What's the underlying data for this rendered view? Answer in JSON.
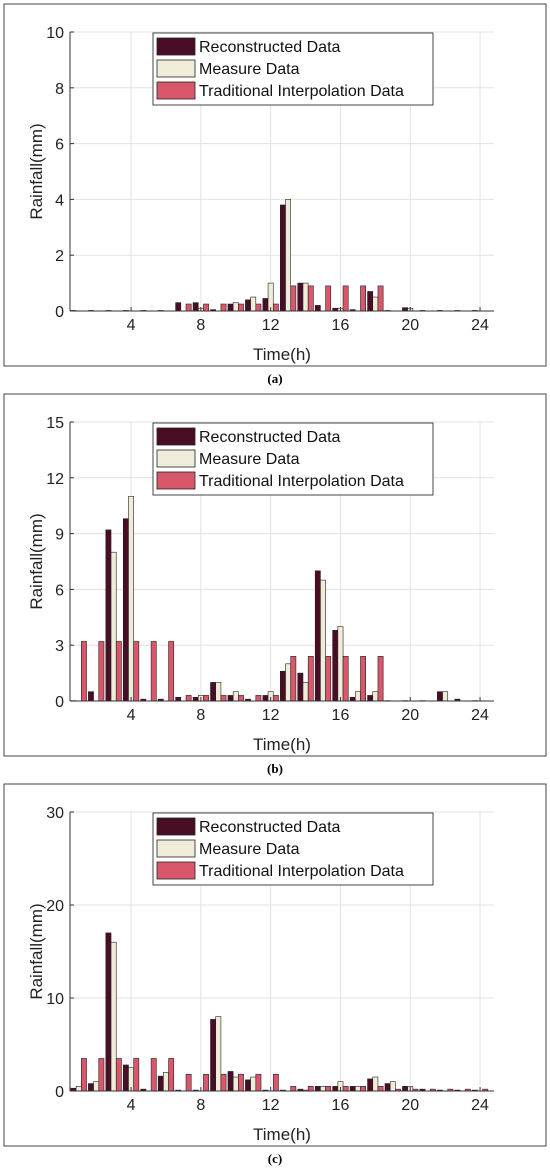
{
  "legend": {
    "reconstructed": "Reconstructed Data",
    "measure": "Measure Data",
    "traditional": "Traditional Interpolation Data"
  },
  "colors": {
    "reconstructed": "#4a0d26",
    "measure": "#f0ecda",
    "traditional": "#d9576a",
    "grid": "#e3e3e3",
    "axis": "#333333"
  },
  "chart_data": [
    {
      "type": "bar",
      "caption": "(a)",
      "xlabel": "Time(h)",
      "ylabel": "Rainfall(mm)",
      "ylim": [
        0,
        10
      ],
      "yticks": [
        0,
        2,
        4,
        6,
        8,
        10
      ],
      "xticks": [
        4,
        8,
        12,
        16,
        20,
        24
      ],
      "grid": true,
      "legend_position": "top-right",
      "x": [
        1,
        2,
        3,
        4,
        5,
        6,
        7,
        8,
        9,
        10,
        11,
        12,
        13,
        14,
        15,
        16,
        17,
        18,
        19,
        20,
        21,
        22,
        23,
        24
      ],
      "series": [
        {
          "name": "Reconstructed Data",
          "values": [
            0.02,
            0.02,
            0.02,
            0.02,
            0.02,
            0.02,
            0.3,
            0.3,
            0.05,
            0.25,
            0.4,
            0.45,
            3.8,
            1.0,
            0.2,
            0.1,
            0.05,
            0.7,
            0.02,
            0.12,
            0.02,
            0.02,
            0.02,
            0.02
          ]
        },
        {
          "name": "Measure Data",
          "values": [
            0,
            0,
            0,
            0,
            0,
            0,
            0,
            0.1,
            0,
            0.3,
            0.5,
            1.0,
            4.0,
            1.0,
            0,
            0.1,
            0,
            0.5,
            0,
            0.1,
            0,
            0,
            0,
            0
          ]
        },
        {
          "name": "Traditional Interpolation Data",
          "values": [
            0,
            0,
            0,
            0,
            0,
            0,
            0.25,
            0.25,
            0.25,
            0.25,
            0.25,
            0.25,
            0.9,
            0.9,
            0.9,
            0.9,
            0.9,
            0.9,
            0,
            0,
            0,
            0,
            0,
            0
          ]
        }
      ]
    },
    {
      "type": "bar",
      "caption": "(b)",
      "xlabel": "Time(h)",
      "ylabel": "Rainfall(mm)",
      "ylim": [
        0,
        15
      ],
      "yticks": [
        0,
        3,
        6,
        9,
        12,
        15
      ],
      "xticks": [
        4,
        8,
        12,
        16,
        20,
        24
      ],
      "grid": true,
      "legend_position": "top-right",
      "x": [
        1,
        2,
        3,
        4,
        5,
        6,
        7,
        8,
        9,
        10,
        11,
        12,
        13,
        14,
        15,
        16,
        17,
        18,
        19,
        20,
        21,
        22,
        23,
        24
      ],
      "series": [
        {
          "name": "Reconstructed Data",
          "values": [
            0.02,
            0.5,
            9.2,
            9.8,
            0.1,
            0.1,
            0.2,
            0.2,
            1.0,
            0.3,
            0.1,
            0.3,
            1.6,
            1.5,
            7.0,
            3.8,
            0.2,
            0.3,
            0.02,
            0.02,
            0.02,
            0.5,
            0.1,
            0.02
          ]
        },
        {
          "name": "Measure Data",
          "values": [
            0,
            0,
            8.0,
            11.0,
            0,
            0,
            0,
            0.3,
            1.0,
            0.5,
            0,
            0.5,
            2.0,
            1.0,
            6.5,
            4.0,
            0.5,
            0.5,
            0,
            0,
            0,
            0.5,
            0,
            0
          ]
        },
        {
          "name": "Traditional Interpolation Data",
          "values": [
            3.2,
            3.2,
            3.2,
            3.2,
            3.2,
            3.2,
            0.3,
            0.3,
            0.3,
            0.3,
            0.3,
            0.3,
            2.4,
            2.4,
            2.4,
            2.4,
            2.4,
            2.4,
            0,
            0,
            0,
            0,
            0,
            0
          ]
        }
      ]
    },
    {
      "type": "bar",
      "caption": "(c)",
      "xlabel": "Time(h)",
      "ylabel": "Rainfall(mm)",
      "ylim": [
        0,
        30
      ],
      "yticks": [
        0,
        10,
        20,
        30
      ],
      "xticks": [
        4,
        8,
        12,
        16,
        20,
        24
      ],
      "grid": true,
      "legend_position": "top-right",
      "x": [
        1,
        2,
        3,
        4,
        5,
        6,
        7,
        8,
        9,
        10,
        11,
        12,
        13,
        14,
        15,
        16,
        17,
        18,
        19,
        20,
        21,
        22,
        23,
        24
      ],
      "series": [
        {
          "name": "Reconstructed Data",
          "values": [
            0.3,
            0.8,
            17.0,
            2.8,
            0.2,
            1.6,
            0.1,
            0.1,
            7.7,
            2.1,
            1.2,
            0.1,
            0.1,
            0.2,
            0.5,
            0.5,
            0.5,
            1.3,
            0.8,
            0.5,
            0.2,
            0.1,
            0.1,
            0.1
          ]
        },
        {
          "name": "Measure Data",
          "values": [
            0.5,
            1.0,
            16.0,
            2.5,
            0,
            2.0,
            0,
            0,
            8.0,
            1.5,
            1.5,
            0,
            0,
            0.1,
            0.5,
            1.0,
            0.5,
            1.5,
            1.0,
            0.5,
            0,
            0,
            0,
            0
          ]
        },
        {
          "name": "Traditional Interpolation Data",
          "values": [
            3.5,
            3.5,
            3.5,
            3.5,
            3.5,
            3.5,
            1.8,
            1.8,
            1.8,
            1.8,
            1.8,
            1.8,
            0.5,
            0.5,
            0.5,
            0.5,
            0.5,
            0.5,
            0.2,
            0.2,
            0.2,
            0.2,
            0.2,
            0.2
          ]
        }
      ]
    }
  ]
}
